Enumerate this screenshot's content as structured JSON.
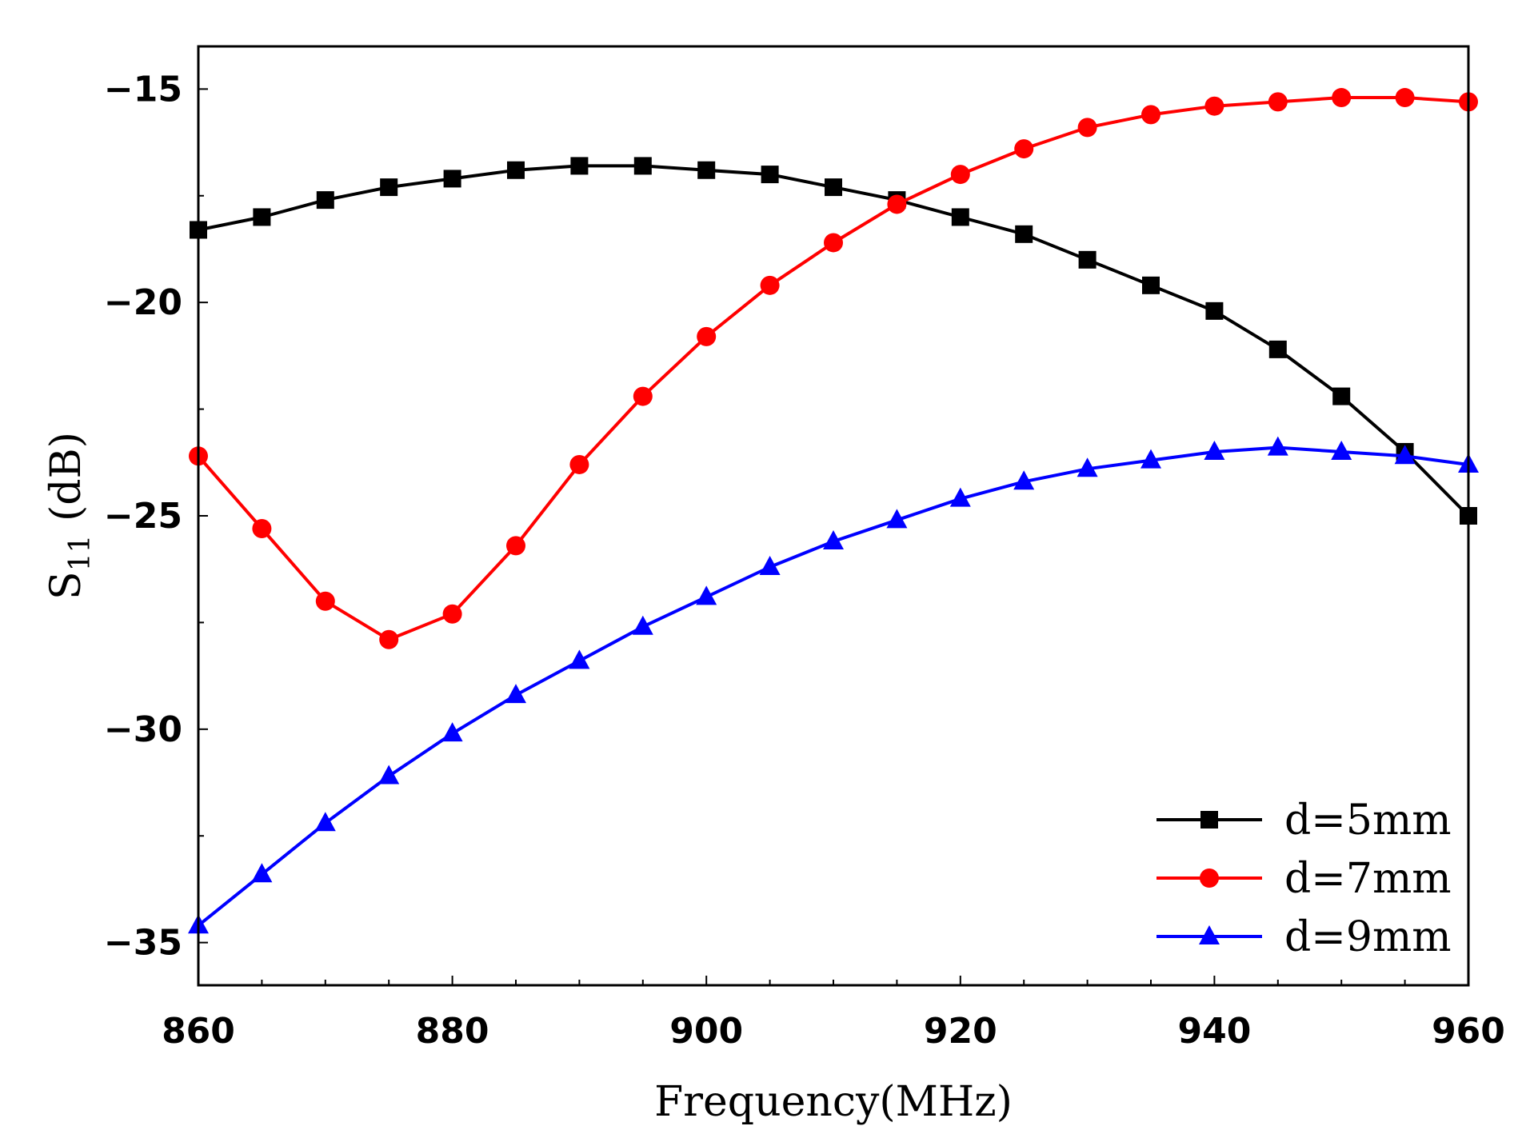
{
  "chart_data": {
    "type": "line",
    "title": "",
    "xlabel": "Frequency(MHz)",
    "ylabel": "S11 (dB)",
    "ylabel_main": "S",
    "ylabel_sub": "11",
    "ylabel_unit": " (dB)",
    "xlim": [
      860,
      960
    ],
    "ylim": [
      -36,
      -14
    ],
    "xticks": [
      860,
      880,
      900,
      920,
      940,
      960
    ],
    "yticks": [
      -15,
      -20,
      -25,
      -30,
      -35
    ],
    "grid": false,
    "legend_position": "bottom-right",
    "x": [
      860,
      865,
      870,
      875,
      880,
      885,
      890,
      895,
      900,
      905,
      910,
      915,
      920,
      925,
      930,
      935,
      940,
      945,
      950,
      955,
      960
    ],
    "series": [
      {
        "name": "d=5mm",
        "color": "#000000",
        "marker": "square",
        "values": [
          -18.3,
          -18.0,
          -17.6,
          -17.3,
          -17.1,
          -16.9,
          -16.8,
          -16.8,
          -16.9,
          -17.0,
          -17.3,
          -17.6,
          -18.0,
          -18.4,
          -19.0,
          -19.6,
          -20.2,
          -21.1,
          -22.2,
          -23.5,
          -25.0
        ]
      },
      {
        "name": "d=7mm",
        "color": "#ff0000",
        "marker": "circle",
        "values": [
          -23.6,
          -25.3,
          -27.0,
          -27.9,
          -27.3,
          -25.7,
          -23.8,
          -22.2,
          -20.8,
          -19.6,
          -18.6,
          -17.7,
          -17.0,
          -16.4,
          -15.9,
          -15.6,
          -15.4,
          -15.3,
          -15.2,
          -15.2,
          -15.3
        ]
      },
      {
        "name": "d=9mm",
        "color": "#0000ff",
        "marker": "triangle",
        "values": [
          -34.6,
          -33.4,
          -32.2,
          -31.1,
          -30.1,
          -29.2,
          -28.4,
          -27.6,
          -26.9,
          -26.2,
          -25.6,
          -25.1,
          -24.6,
          -24.2,
          -23.9,
          -23.7,
          -23.5,
          -23.4,
          -23.5,
          -23.6,
          -23.8
        ]
      }
    ]
  }
}
